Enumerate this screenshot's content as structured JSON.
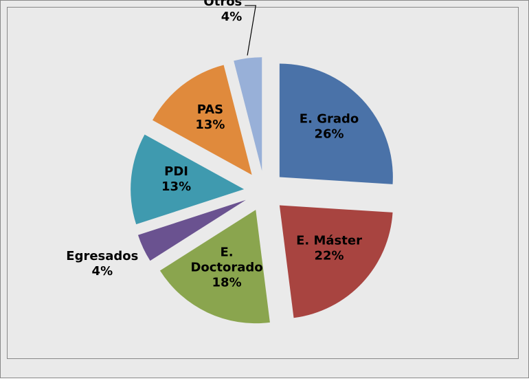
{
  "chart_data": {
    "type": "pie",
    "categories": [
      "E. Grado",
      "E. Máster",
      "E. Doctorado",
      "Egresados",
      "PDI",
      "PAS",
      "Otros"
    ],
    "values": [
      26,
      22,
      18,
      4,
      13,
      13,
      4
    ],
    "value_labels": [
      "26%",
      "22%",
      "18%",
      "4%",
      "13%",
      "13%",
      "4%"
    ],
    "colors": [
      "#4a72a8",
      "#a84440",
      "#8aa54e",
      "#6a5290",
      "#3f9aaf",
      "#e08a3c",
      "#98b0d8"
    ]
  }
}
